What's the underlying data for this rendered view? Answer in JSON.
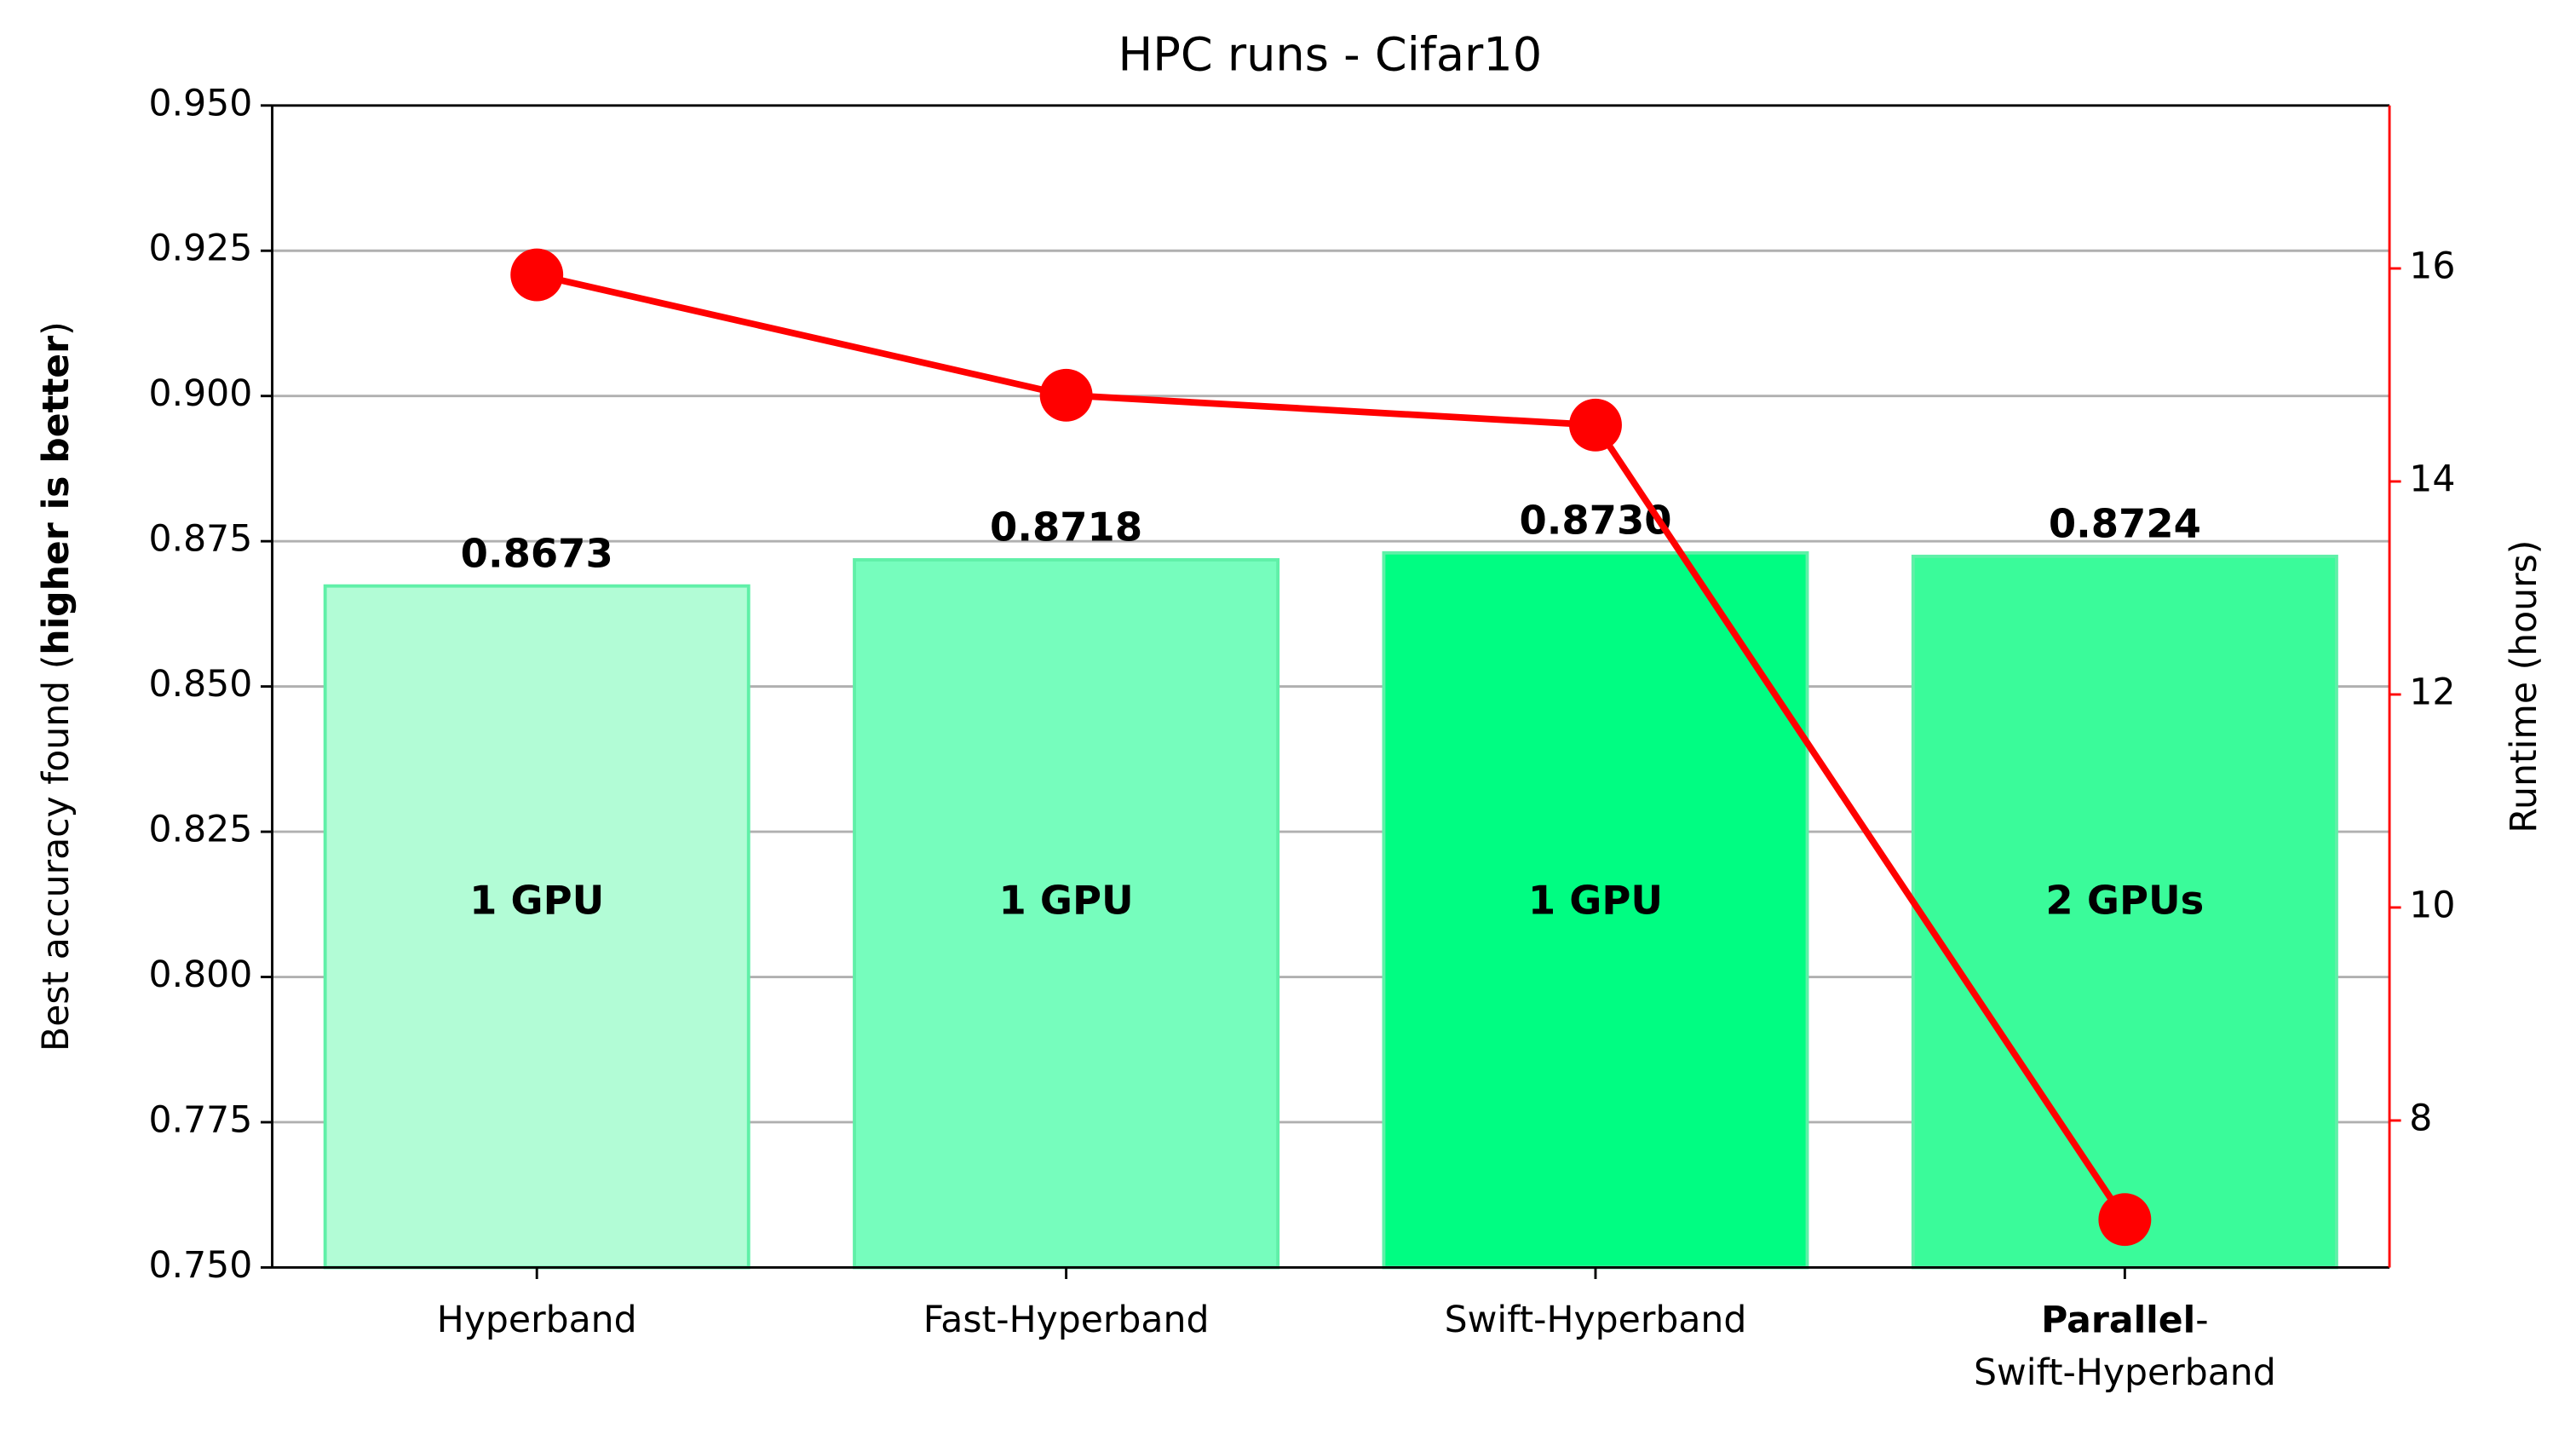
{
  "chart_data": {
    "type": "bar_line",
    "title": "HPC runs - Cifar10",
    "ylabel": [
      {
        "text": "Best accuracy found ("
      },
      {
        "text": "higher is better",
        "bold": true
      },
      {
        "text": ")"
      }
    ],
    "y2label": "Runtime (hours)",
    "categories": [
      "Hyperband",
      "Fast-Hyperband",
      "Swift-Hyperband",
      {
        "lines": [
          [
            {
              "text": "Parallel",
              "bold": true
            },
            {
              "text": "-"
            }
          ],
          [
            {
              "text": "Swift-Hyperband"
            }
          ]
        ]
      }
    ],
    "series": [
      {
        "type": "bar",
        "values": [
          0.8673,
          0.8718,
          0.873,
          0.8724
        ],
        "value_labels": [
          "0.8673",
          "0.8718",
          "0.8730",
          "0.8724"
        ],
        "bar_texts": [
          "1 GPU",
          "1 GPU",
          "1 GPU",
          "2 GPUs"
        ],
        "colors": [
          "#b2fcd6",
          "#76fdbd",
          "#00fd82",
          "#3afb9a"
        ]
      },
      {
        "type": "line",
        "axis": "y2",
        "color": "#ff0000",
        "values": [
          15.94,
          14.81,
          14.53,
          7.07
        ]
      }
    ],
    "ylim": [
      0.75,
      0.95
    ],
    "yticks": [
      {
        "value": 0.75,
        "label": "0.750"
      },
      {
        "value": 0.775,
        "label": "0.775"
      },
      {
        "value": 0.8,
        "label": "0.800"
      },
      {
        "value": 0.825,
        "label": "0.825"
      },
      {
        "value": 0.85,
        "label": "0.850"
      },
      {
        "value": 0.875,
        "label": "0.875"
      },
      {
        "value": 0.9,
        "label": "0.900"
      },
      {
        "value": 0.925,
        "label": "0.925"
      },
      {
        "value": 0.95,
        "label": "0.950"
      }
    ],
    "y2lim": [
      6.62,
      17.53
    ],
    "y2ticks": [
      8,
      10,
      12,
      14,
      16
    ],
    "y2color": "#ff0000",
    "grid": true
  }
}
